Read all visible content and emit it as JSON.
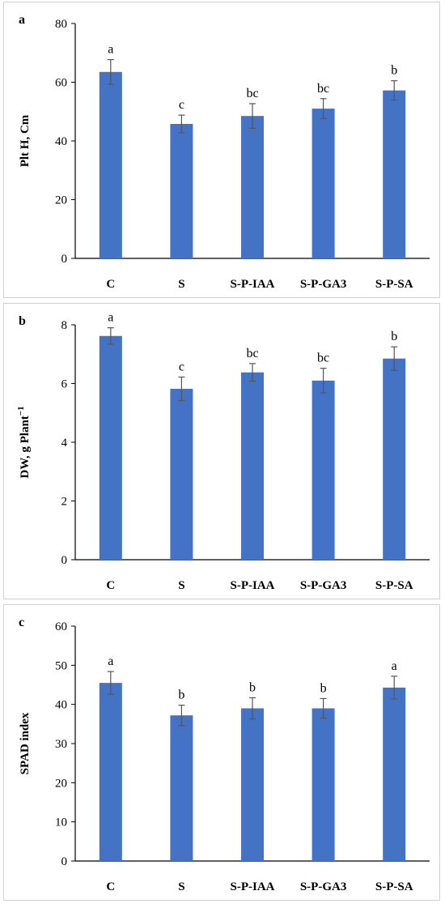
{
  "colors": {
    "bar": "#4472C4",
    "axis": "#000000",
    "error_bar": "#555555",
    "frame": "#d0d0d0"
  },
  "chart_data": [
    {
      "type": "bar",
      "panel_label": "a",
      "categories": [
        "C",
        "S",
        "S-P-IAA",
        "S-P-GA3",
        "S-P-SA"
      ],
      "values": [
        63.5,
        45.8,
        48.5,
        51.0,
        57.2
      ],
      "errors": [
        4.2,
        3.0,
        4.2,
        3.4,
        3.3
      ],
      "significance": [
        "a",
        "c",
        "bc",
        "bc",
        "b"
      ],
      "ylabel": "Plt H, Cm",
      "ylim": [
        0,
        80
      ],
      "yticks": [
        "0",
        "20",
        "40",
        "60",
        "80"
      ],
      "grid": false,
      "legend": "none"
    },
    {
      "type": "bar",
      "panel_label": "b",
      "categories": [
        "C",
        "S",
        "S-P-IAA",
        "S-P-GA3",
        "S-P-SA"
      ],
      "values": [
        7.62,
        5.82,
        6.38,
        6.1,
        6.85
      ],
      "errors": [
        0.28,
        0.4,
        0.3,
        0.42,
        0.4
      ],
      "significance": [
        "a",
        "c",
        "bc",
        "bc",
        "b"
      ],
      "ylabel": "DW, g Plant",
      "ylabel_sup": "−1",
      "ylim": [
        0,
        8
      ],
      "yticks": [
        "0",
        "2",
        "4",
        "6",
        "8"
      ],
      "grid": false,
      "legend": "none"
    },
    {
      "type": "bar",
      "panel_label": "c",
      "categories": [
        "C",
        "S",
        "S-P-IAA",
        "S-P-GA3",
        "S-P-SA"
      ],
      "values": [
        45.5,
        37.2,
        39.0,
        39.0,
        44.3
      ],
      "errors": [
        2.9,
        2.6,
        2.7,
        2.5,
        2.9
      ],
      "significance": [
        "a",
        "b",
        "b",
        "b",
        "a"
      ],
      "ylabel": "SPAD index",
      "ylim": [
        0,
        60
      ],
      "yticks": [
        "0",
        "10",
        "20",
        "30",
        "40",
        "50",
        "60"
      ],
      "grid": false,
      "legend": "none"
    }
  ]
}
